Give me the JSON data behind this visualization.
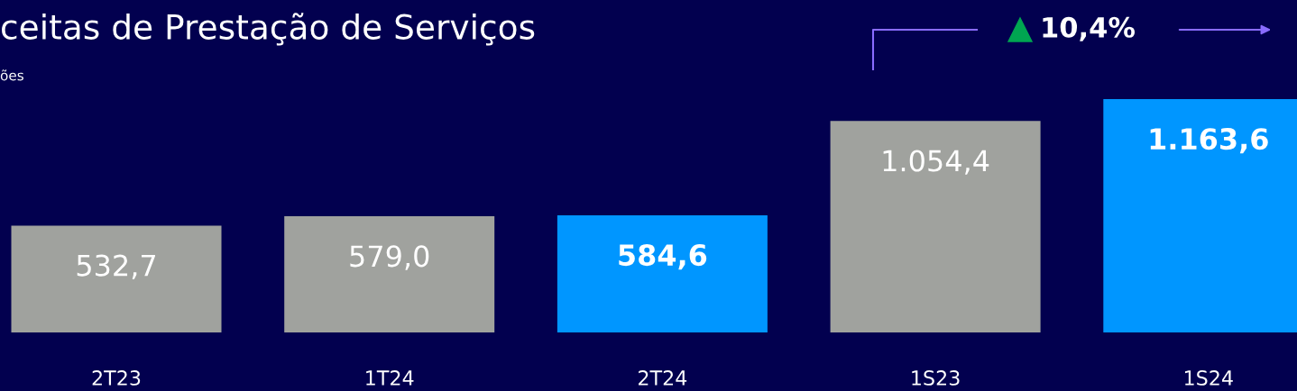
{
  "chart_data": {
    "type": "bar",
    "title": "ceitas de Prestação de Serviços",
    "subtitle": "ões",
    "categories": [
      "2T23",
      "1T24",
      "2T24",
      "1S23",
      "1S24"
    ],
    "values": [
      532.7,
      579.0,
      584.6,
      1054.4,
      1163.6
    ],
    "colors": [
      "#a0a29e",
      "#a0a29e",
      "#0096ff",
      "#a0a29e",
      "#0096ff"
    ],
    "value_labels": [
      "532,7",
      "579,0",
      "584,6",
      "1.054,4",
      "1.163,6"
    ],
    "annotations": [
      "10,4%"
    ],
    "grid": false,
    "legend": false
  }
}
